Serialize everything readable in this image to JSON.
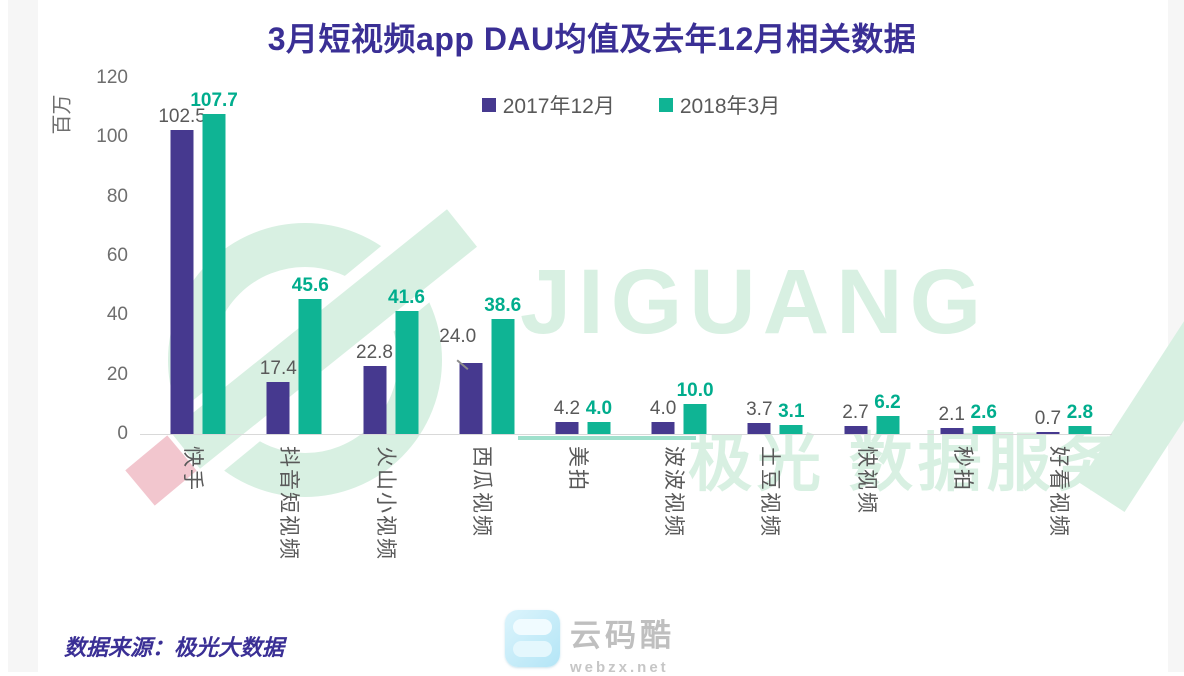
{
  "title": {
    "text": "3月短视频app DAU均值及去年12月相关数据"
  },
  "chart_data": {
    "type": "bar",
    "title": "3月短视频app DAU均值及去年12月相关数据",
    "ylabel": "百万",
    "ylim": [
      0,
      120
    ],
    "yticks": [
      0,
      20,
      40,
      60,
      80,
      100,
      120
    ],
    "grid": false,
    "legend_position": "top-center",
    "categories": [
      "快手",
      "抖音短视频",
      "火山小视频",
      "西瓜视频",
      "美拍",
      "波波视频",
      "土豆视频",
      "快视频",
      "秒拍",
      "好看视频"
    ],
    "series": [
      {
        "name": "2017年12月",
        "color": "#46398f",
        "label_color": "#595959",
        "label_bold": false,
        "values": [
          102.5,
          17.4,
          22.8,
          24.0,
          4.2,
          4.0,
          3.7,
          2.7,
          2.1,
          0.7
        ],
        "display": [
          "102.5",
          "17.4",
          "22.8",
          "24.0",
          "4.2",
          "4.0",
          "3.7",
          "2.7",
          "2.1",
          "0.7"
        ]
      },
      {
        "name": "2018年3月",
        "color": "#0fb494",
        "label_color": "#00ad8d",
        "label_bold": true,
        "values": [
          107.7,
          45.6,
          41.6,
          38.6,
          4.0,
          10.0,
          3.1,
          6.2,
          2.6,
          2.8
        ],
        "display": [
          "107.7",
          "45.6",
          "41.6",
          "38.6",
          "4.0",
          "10.0",
          "3.1",
          "6.2",
          "2.6",
          "2.8"
        ]
      }
    ],
    "label_leader": {
      "series": 0,
      "index": 3
    }
  },
  "watermark": {
    "brand": "JIGUANG",
    "subtext": "极光 数据服务",
    "color": "#d8f0e2"
  },
  "source": {
    "text": "数据来源：极光大数据"
  },
  "footer_logo": {
    "name": "云码酷",
    "domain": "webzx.net"
  },
  "colors": {
    "title": "#3a2f95",
    "axis_text": "#6e6e6e",
    "category_text": "#595959",
    "baseline": "#d9d9d9",
    "series_dec": "#46398f",
    "series_mar": "#0fb494"
  }
}
